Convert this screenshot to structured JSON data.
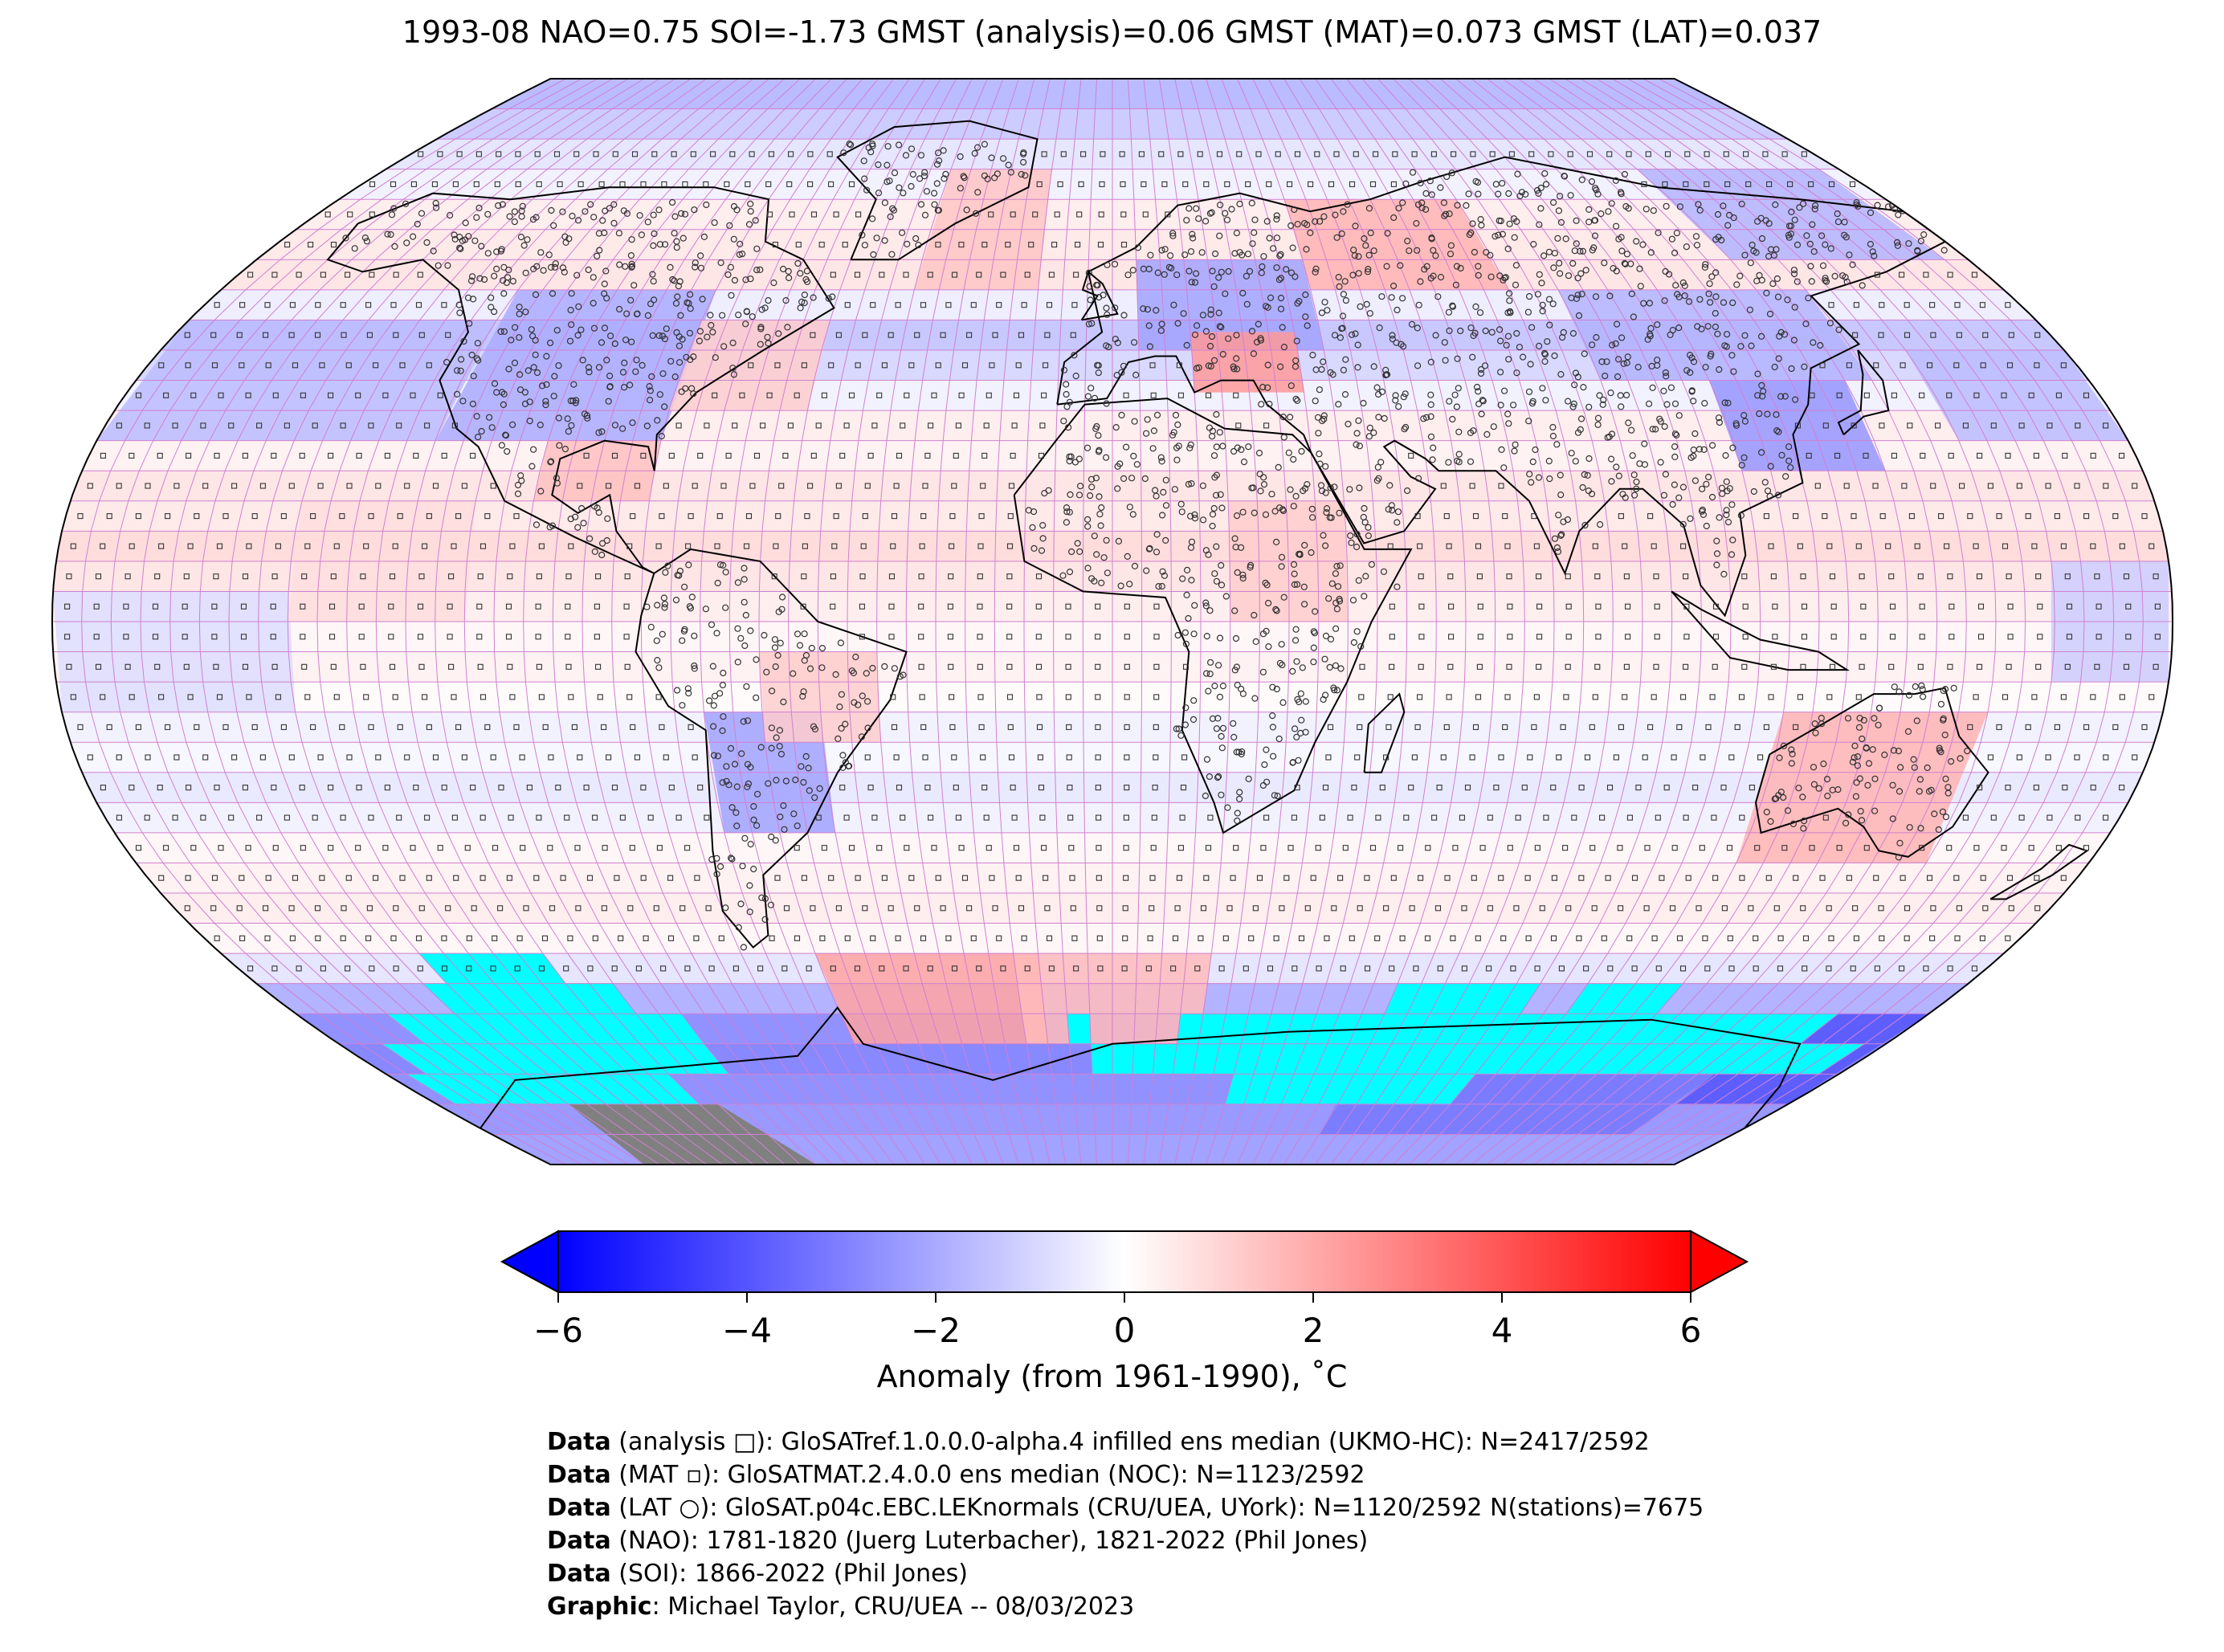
{
  "title": "1993-08 NAO=0.75 SOI=-1.73 GMST (analysis)=0.06 GMST (MAT)=0.073 GMST (LAT)=0.037",
  "colorbar": {
    "min": -6,
    "max": 6,
    "ticks": [
      "−6",
      "−4",
      "−2",
      "0",
      "2",
      "4",
      "6"
    ],
    "tick_values": [
      -6,
      -4,
      -2,
      0,
      2,
      4,
      6
    ],
    "label": "Anomaly (from 1961-1990), ˚C",
    "colors": {
      "low": "#0000ff",
      "mid": "#ffffff",
      "high": "#ff0000"
    }
  },
  "map_legend_colors": {
    "sea_ice": "#00ffff",
    "missing": "#808080",
    "gridlines": "#d080d0"
  },
  "credits": [
    {
      "bold": "Data",
      "text": " (analysis □): GloSATref.1.0.0.0-alpha.4 infilled ens median (UKMO-HC): N=2417/2592"
    },
    {
      "bold": "Data",
      "text": " (MAT ▫): GloSATMAT.2.4.0.0 ens median (NOC): N=1123/2592"
    },
    {
      "bold": "Data",
      "text": " (LAT ○): GloSAT.p04c.EBC.LEKnormals (CRU/UEA, UYork): N=1120/2592 N(stations)=7675"
    },
    {
      "bold": "Data",
      "text": " (NAO): 1781-1820 (Juerg Luterbacher), 1821-2022 (Phil Jones)"
    },
    {
      "bold": "Data",
      "text": " (SOI): 1866-2022 (Phil Jones)"
    },
    {
      "bold": "Graphic",
      "text": ": Michael Taylor, CRU/UEA -- 08/03/2023"
    }
  ]
}
